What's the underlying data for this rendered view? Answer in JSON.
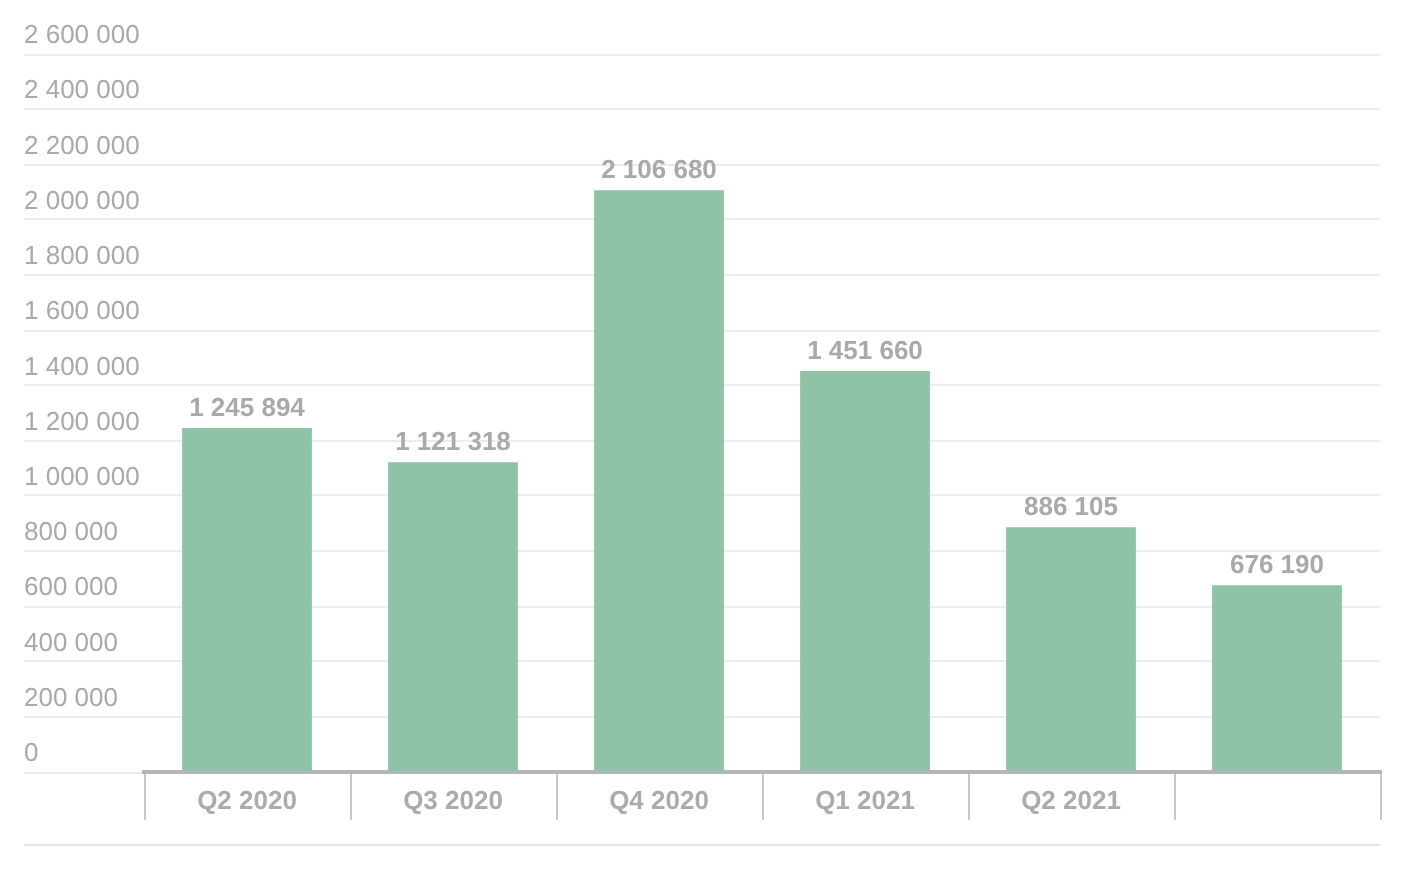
{
  "chart_data": {
    "type": "bar",
    "categories": [
      "Q2 2020",
      "Q3 2020",
      "Q4 2020",
      "Q1 2021",
      "Q2 2021",
      null
    ],
    "values": [
      1245894,
      1121318,
      2106680,
      1451660,
      886105,
      676190
    ],
    "value_labels": [
      "1 245 894",
      "1 121 318",
      "2 106 680",
      "1 451 660",
      "886 105",
      "676 190"
    ],
    "color": "#8ec3a7",
    "ylim": [
      0,
      2600000
    ],
    "yticks": [
      {
        "value": 0,
        "label": "0"
      },
      {
        "value": 200000,
        "label": "200 000"
      },
      {
        "value": 400000,
        "label": "400 000"
      },
      {
        "value": 600000,
        "label": "600 000"
      },
      {
        "value": 800000,
        "label": "800 000"
      },
      {
        "value": 1000000,
        "label": "1 000 000"
      },
      {
        "value": 1200000,
        "label": "1 200 000"
      },
      {
        "value": 1400000,
        "label": "1 400 000"
      },
      {
        "value": 1600000,
        "label": "1 600 000"
      },
      {
        "value": 1800000,
        "label": "1 800 000"
      },
      {
        "value": 2000000,
        "label": "2 000 000"
      },
      {
        "value": 2200000,
        "label": "2 200 000"
      },
      {
        "value": 2400000,
        "label": "2 400 000"
      },
      {
        "value": 2600000,
        "label": "2 600 000"
      }
    ],
    "grid": "y"
  }
}
